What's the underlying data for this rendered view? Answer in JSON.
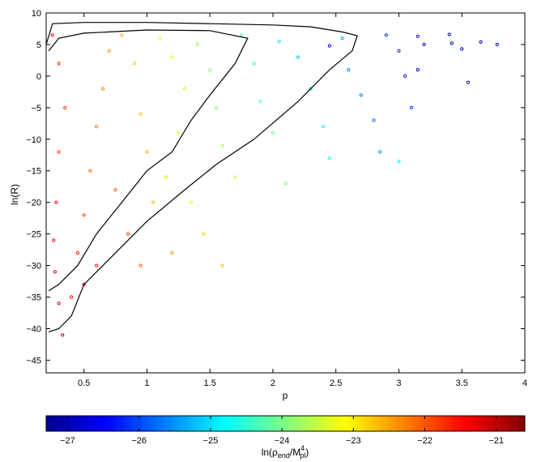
{
  "chart_data": {
    "type": "scatter",
    "title": "",
    "xlabel": "p",
    "ylabel": "ln(R)",
    "xlim": [
      0.2,
      4
    ],
    "ylim": [
      -47,
      10
    ],
    "x_ticks": [
      "0.5",
      "1",
      "1.5",
      "2",
      "2.5",
      "3",
      "3.5",
      "4"
    ],
    "y_ticks": [
      "10",
      "5",
      "0",
      "-5",
      "-10",
      "-15",
      "-20",
      "-25",
      "-30",
      "-35",
      "-40",
      "-45"
    ],
    "grid": false,
    "colorbar": {
      "label": "ln(ρ_end/M_pl^4)",
      "label_main": "ln(ρ",
      "label_sub1": "end",
      "label_mid": "/M",
      "label_sup": "4",
      "label_sub2": "pl",
      "label_end": ")",
      "range": [
        -27.3,
        -20.6
      ],
      "ticks": [
        "-27",
        "-26",
        "-25",
        "-24",
        "-23",
        "-22",
        "-21"
      ],
      "colormap": "jet"
    },
    "sample_points_note": "dense scatter cloud; representative points",
    "points": [
      [
        0.25,
        6.5,
        -21.5
      ],
      [
        0.3,
        2.0,
        -21.6
      ],
      [
        0.35,
        -5,
        -21.8
      ],
      [
        0.3,
        -12,
        -21.7
      ],
      [
        0.28,
        -20,
        -21.4
      ],
      [
        0.26,
        -26,
        -21.3
      ],
      [
        0.27,
        -31,
        -21.2
      ],
      [
        0.3,
        -36,
        -21.1
      ],
      [
        0.33,
        -41,
        -21.0
      ],
      [
        0.4,
        -35,
        -21.4
      ],
      [
        0.45,
        -28,
        -21.6
      ],
      [
        0.5,
        -22,
        -21.9
      ],
      [
        0.55,
        -15,
        -22.1
      ],
      [
        0.6,
        -8,
        -22.2
      ],
      [
        0.65,
        -2,
        -22.3
      ],
      [
        0.7,
        4,
        -22.4
      ],
      [
        0.8,
        6.5,
        -22.6
      ],
      [
        0.9,
        2,
        -22.8
      ],
      [
        0.95,
        -6,
        -22.7
      ],
      [
        1.0,
        -12,
        -22.5
      ],
      [
        0.75,
        -18,
        -22.0
      ],
      [
        0.85,
        -25,
        -21.9
      ],
      [
        0.6,
        -30,
        -21.5
      ],
      [
        0.5,
        -33,
        -21.3
      ],
      [
        0.95,
        -30,
        -22.1
      ],
      [
        1.1,
        6,
        -23.2
      ],
      [
        1.2,
        3,
        -23.4
      ],
      [
        1.3,
        -2,
        -23.5
      ],
      [
        1.25,
        -9,
        -23.3
      ],
      [
        1.15,
        -16,
        -22.9
      ],
      [
        1.05,
        -20,
        -22.6
      ],
      [
        1.35,
        -20,
        -23.0
      ],
      [
        1.45,
        -25,
        -22.8
      ],
      [
        1.2,
        -28,
        -22.4
      ],
      [
        1.6,
        -30,
        -22.7
      ],
      [
        1.4,
        5,
        -23.8
      ],
      [
        1.5,
        1,
        -23.9
      ],
      [
        1.55,
        -5,
        -24.0
      ],
      [
        1.6,
        -11,
        -23.7
      ],
      [
        1.7,
        -16,
        -23.5
      ],
      [
        1.75,
        6.5,
        -24.4
      ],
      [
        1.85,
        2,
        -24.5
      ],
      [
        1.9,
        -4,
        -24.3
      ],
      [
        2.0,
        -9,
        -24.2
      ],
      [
        2.1,
        -17,
        -24.0
      ],
      [
        2.05,
        5.5,
        -24.9
      ],
      [
        2.2,
        3,
        -25.1
      ],
      [
        2.3,
        -2,
        -25.0
      ],
      [
        2.4,
        -8,
        -24.8
      ],
      [
        2.45,
        -13,
        -24.6
      ],
      [
        2.55,
        6,
        -25.4
      ],
      [
        2.6,
        1,
        -25.6
      ],
      [
        2.7,
        -3,
        -25.7
      ],
      [
        2.8,
        -7,
        -25.8
      ],
      [
        2.85,
        -12,
        -25.5
      ],
      [
        2.9,
        6.5,
        -26.2
      ],
      [
        3.0,
        4,
        -26.3
      ],
      [
        3.05,
        0,
        -26.4
      ],
      [
        3.1,
        -5,
        -26.2
      ],
      [
        3.0,
        -13.5,
        -24.8
      ],
      [
        3.15,
        6.3,
        -26.6
      ],
      [
        3.2,
        5,
        -26.8
      ],
      [
        3.4,
        6.6,
        -27.0
      ],
      [
        3.42,
        5.2,
        -26.9
      ],
      [
        3.5,
        4.3,
        -26.9
      ],
      [
        3.55,
        -1,
        -26.7
      ],
      [
        3.65,
        5.4,
        -27.0
      ],
      [
        3.78,
        5.0,
        -26.9
      ],
      [
        3.15,
        1.0,
        -27.1
      ],
      [
        2.45,
        4.8,
        -26.5
      ]
    ],
    "contours": [
      {
        "name": "outer",
        "points": [
          [
            0.2,
            5
          ],
          [
            0.25,
            8.3
          ],
          [
            0.5,
            8.5
          ],
          [
            1.0,
            8.5
          ],
          [
            1.5,
            8.3
          ],
          [
            2.0,
            8.1
          ],
          [
            2.3,
            7.8
          ],
          [
            2.55,
            7.0
          ],
          [
            2.67,
            6.4
          ],
          [
            2.63,
            4
          ],
          [
            2.45,
            1
          ],
          [
            2.2,
            -4
          ],
          [
            1.85,
            -10
          ],
          [
            1.55,
            -14
          ],
          [
            1.3,
            -18
          ],
          [
            1.0,
            -23
          ],
          [
            0.7,
            -29
          ],
          [
            0.5,
            -33
          ],
          [
            0.4,
            -38
          ],
          [
            0.3,
            -40
          ],
          [
            0.22,
            -40.5
          ]
        ]
      },
      {
        "name": "inner",
        "points": [
          [
            0.22,
            4
          ],
          [
            0.3,
            6
          ],
          [
            0.5,
            6.8
          ],
          [
            1.0,
            7.3
          ],
          [
            1.5,
            7.2
          ],
          [
            1.8,
            6.0
          ],
          [
            1.7,
            2
          ],
          [
            1.5,
            -3
          ],
          [
            1.35,
            -7
          ],
          [
            1.2,
            -12
          ],
          [
            1.0,
            -15
          ],
          [
            0.8,
            -20
          ],
          [
            0.6,
            -25
          ],
          [
            0.45,
            -30
          ],
          [
            0.3,
            -33
          ],
          [
            0.22,
            -34
          ]
        ]
      }
    ]
  }
}
